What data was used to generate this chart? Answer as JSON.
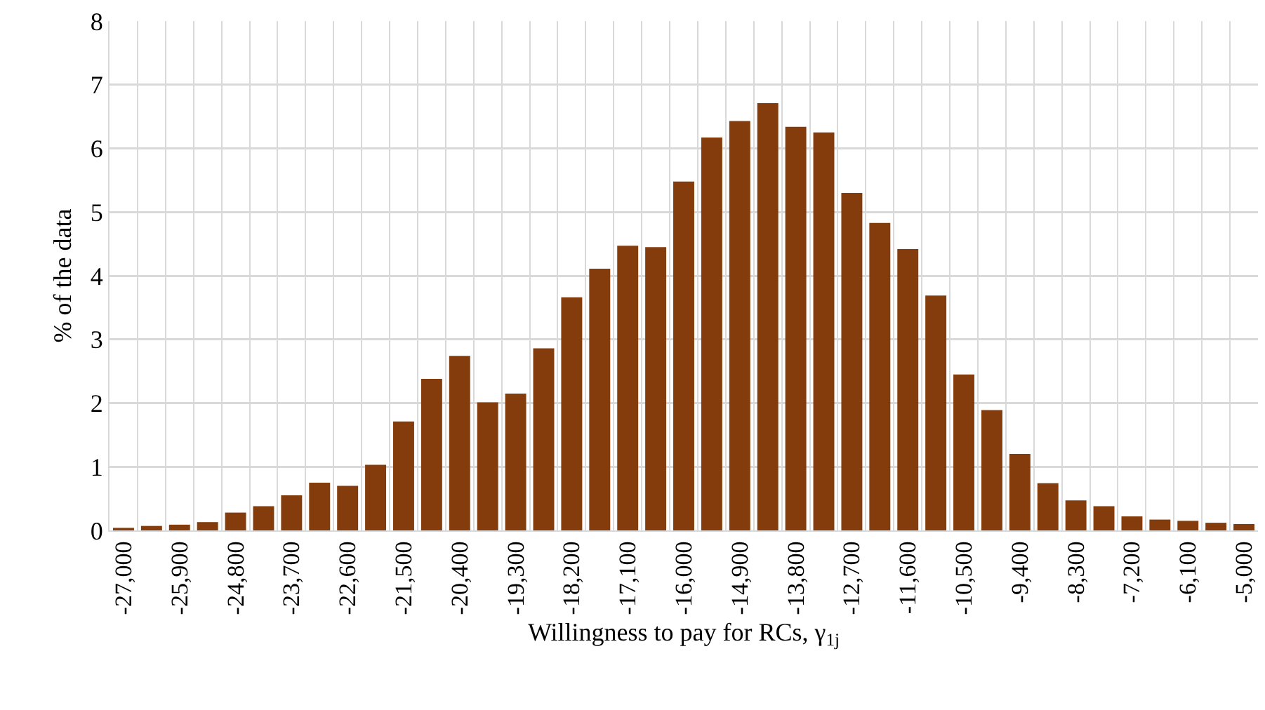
{
  "chart_data": {
    "type": "bar",
    "xlabel": "Willingness to pay for RCs, γ$_{1j}$",
    "ylabel": "% of the data",
    "categories": [
      "-27,000",
      null,
      "-25,900",
      null,
      "-24,800",
      null,
      "-23,700",
      null,
      "-22,600",
      null,
      "-21,500",
      null,
      "-20,400",
      null,
      "-19,300",
      null,
      "-18,200",
      null,
      "-17,100",
      null,
      "-16,000",
      null,
      "-14,900",
      null,
      "-13,800",
      null,
      "-12,700",
      null,
      "-11,600",
      null,
      "-10,500",
      null,
      "-9,400",
      null,
      "-8,300",
      null,
      "-7,200",
      null,
      "-6,100",
      null,
      "-5,000"
    ],
    "values": [
      0.04,
      0.07,
      0.09,
      0.13,
      0.28,
      0.38,
      0.55,
      0.75,
      0.7,
      1.03,
      1.71,
      2.38,
      2.74,
      2.01,
      2.15,
      2.86,
      3.66,
      4.11,
      4.47,
      4.45,
      5.48,
      6.17,
      6.43,
      6.71,
      6.34,
      6.25,
      5.3,
      4.83,
      4.42,
      3.69,
      2.45,
      1.89,
      1.2,
      0.74,
      0.47,
      0.38,
      0.22,
      0.17,
      0.15,
      0.12,
      0.1
    ],
    "color": "#843c0c",
    "ylim": [
      0,
      8
    ],
    "yticks": [
      0,
      1,
      2,
      3,
      4,
      5,
      6,
      7,
      8
    ],
    "grid": true
  }
}
